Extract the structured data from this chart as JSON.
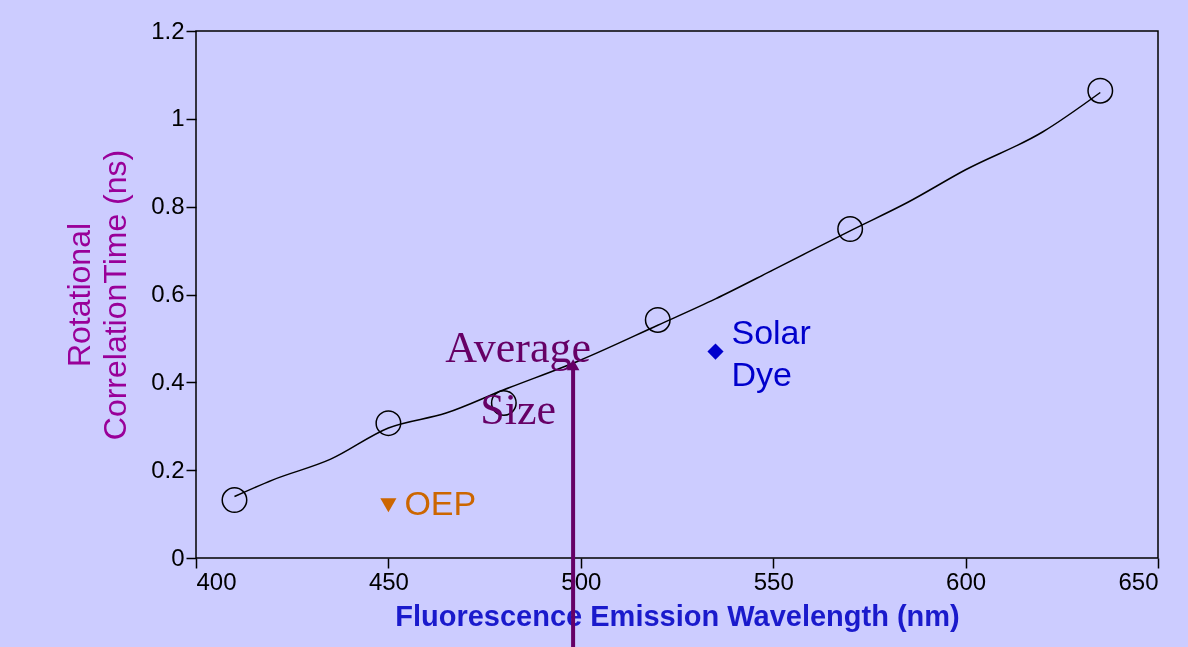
{
  "chart_data": {
    "type": "scatter",
    "xlabel": "Fluorescence Emission Wavelength (nm)",
    "ylabel": "Rotational\nCorrelationTime (ns)",
    "xlim": [
      400,
      650
    ],
    "xticks": [
      400,
      450,
      500,
      550,
      600,
      650
    ],
    "ylim": [
      0,
      1.2
    ],
    "yticks": [
      0,
      0.2,
      0.4,
      0.6,
      0.8,
      1,
      1.2
    ],
    "grid": false,
    "series": [
      {
        "marker": "circle",
        "color": "#000000",
        "x": [
          410,
          450,
          480,
          520,
          570,
          635
        ],
        "values": [
          0.132,
          0.307,
          0.353,
          0.542,
          0.749,
          1.064
        ]
      },
      {
        "type": "line",
        "marker": "none",
        "line_style": "solid",
        "color": "#000000",
        "x": [
          410,
          420,
          435,
          450,
          465,
          480,
          500,
          520,
          535,
          550,
          570,
          585,
          600,
          620,
          635
        ],
        "values": [
          0.14,
          0.178,
          0.225,
          0.296,
          0.33,
          0.383,
          0.451,
          0.53,
          0.59,
          0.656,
          0.745,
          0.81,
          0.884,
          0.97,
          1.06
        ]
      },
      {
        "marker": "triangle-down",
        "name": "OEP",
        "color": "#cc6600",
        "x": [
          450
        ],
        "values": [
          0.12
        ]
      },
      {
        "marker": "diamond",
        "name": "Solar\nDye",
        "color": "#0000cc",
        "x": [
          535
        ],
        "values": [
          0.47
        ]
      }
    ],
    "annotations": [
      {
        "text": "Average\nSize",
        "x": 498,
        "y": 0.44
      }
    ]
  }
}
